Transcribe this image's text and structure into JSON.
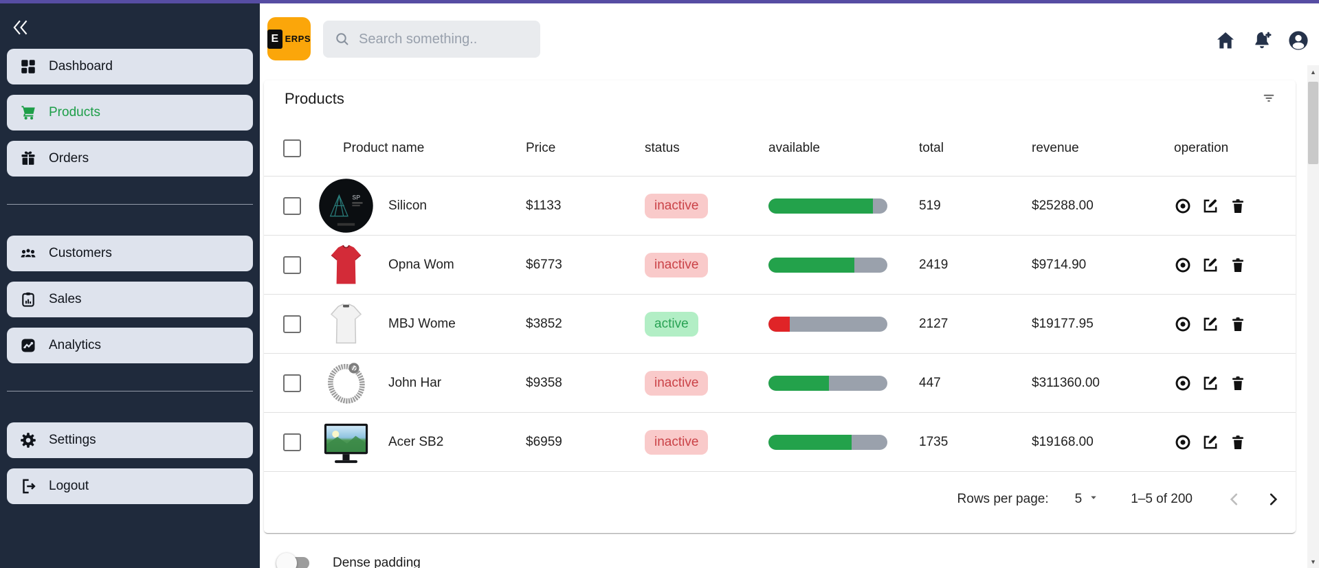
{
  "topbar": {
    "logo": {
      "letter": "E",
      "text": "ERPS"
    },
    "search_placeholder": "Search something..",
    "icons": [
      {
        "name": "home",
        "icon": "home"
      },
      {
        "name": "notifications-add",
        "icon": "bellplus"
      },
      {
        "name": "account",
        "icon": "account"
      }
    ]
  },
  "sidebar": {
    "sections": [
      {
        "items": [
          {
            "label": "Dashboard",
            "icon": "dashboard",
            "active": false
          },
          {
            "label": "Products",
            "icon": "cart",
            "active": true
          },
          {
            "label": "Orders",
            "icon": "gift",
            "active": false
          }
        ]
      },
      {
        "items": [
          {
            "label": "Customers",
            "icon": "people",
            "active": false
          },
          {
            "label": "Sales",
            "icon": "clipboard",
            "active": false
          },
          {
            "label": "Analytics",
            "icon": "analytics",
            "active": false
          }
        ]
      },
      {
        "items": [
          {
            "label": "Settings",
            "icon": "gear",
            "active": false
          },
          {
            "label": "Logout",
            "icon": "logout",
            "active": false
          }
        ]
      }
    ]
  },
  "page": {
    "title": "Products",
    "table": {
      "headers": {
        "name": "Product name",
        "price": "Price",
        "status": "status",
        "available": "available",
        "total": "total",
        "revenue": "revenue",
        "operation": "operation"
      },
      "rows": [
        {
          "name": "Silicon",
          "price": "$1133",
          "status": "inactive",
          "available_pct": 88,
          "available_color": "green",
          "total": "519",
          "revenue": "$25288.00",
          "image": "dark-tech-device"
        },
        {
          "name": "Opna Wom",
          "price": "$6773",
          "status": "inactive",
          "available_pct": 72,
          "available_color": "green",
          "total": "2419",
          "revenue": "$9714.90",
          "image": "red-tshirt"
        },
        {
          "name": "MBJ Wome",
          "price": "$3852",
          "status": "active",
          "available_pct": 18,
          "available_color": "red",
          "total": "2127",
          "revenue": "$19177.95",
          "image": "white-tshirt"
        },
        {
          "name": "John Har",
          "price": "$9358",
          "status": "inactive",
          "available_pct": 51,
          "available_color": "green",
          "total": "447",
          "revenue": "$311360.00",
          "image": "silver-bracelet"
        },
        {
          "name": "Acer SB2",
          "price": "$6959",
          "status": "inactive",
          "available_pct": 70,
          "available_color": "green",
          "total": "1735",
          "revenue": "$19168.00",
          "image": "monitor-landscape"
        }
      ]
    },
    "pagination": {
      "rows_per_page_label": "Rows per page:",
      "rows_per_page_value": "5",
      "range": "1–5 of 200"
    },
    "dense_toggle_label": "Dense padding"
  },
  "colors": {
    "topline": "#564da3",
    "sidebar_bg": "#1f2a3c",
    "sidebar_item_bg": "#dee3ed",
    "accent_green": "#1d9e48",
    "logo_bg": "#fba60a",
    "progress_green": "#23a24b",
    "progress_red": "#e02427",
    "progress_track": "#9aa1ac",
    "inactive_badge_bg": "#f9caca",
    "inactive_badge_text": "#ca4247",
    "active_badge_bg": "#b2eec5",
    "active_badge_text": "#29a254"
  }
}
